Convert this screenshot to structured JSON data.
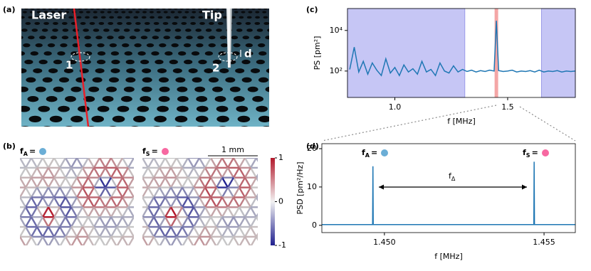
{
  "panels": {
    "a": {
      "label": "(a)",
      "laser": "Laser",
      "tip": "Tip",
      "point1": "1",
      "point2": "2",
      "distance": "d"
    },
    "b": {
      "label": "(b)",
      "mode_labels": [
        {
          "symbol": "f",
          "subscript": "A",
          "suffix": "=",
          "color": "#6baed6"
        },
        {
          "symbol": "f",
          "subscript": "S",
          "suffix": "=",
          "color": "#f768a1"
        }
      ],
      "scale_bar": "1 mm",
      "colorbar_ticks": [
        {
          "value": 1,
          "label": "1"
        },
        {
          "value": 0,
          "label": "0"
        },
        {
          "value": -1,
          "label": "-1"
        }
      ]
    }
  },
  "chart_data": [
    {
      "type": "line",
      "panel_label": "(c)",
      "x_label": "f [MHz]",
      "y_label": "PS [pm²]",
      "log_y": true,
      "xlim": [
        0.79,
        1.8
      ],
      "ylim": [
        5,
        120000
      ],
      "xticks": [
        {
          "value": 1,
          "label": "1.0"
        },
        1.5
      ],
      "yticks": [
        {
          "value": 100,
          "label": "10²"
        },
        {
          "value": 10000,
          "label": "10⁴"
        }
      ],
      "shaded_regions": [
        [
          0.79,
          1.31
        ],
        [
          1.65,
          1.8
        ]
      ],
      "shade_color": "#c6c6f5",
      "highlight_x": 1.45,
      "highlight_color": "#f4a6a6",
      "series": [
        {
          "color": "#1f77b4",
          "x": [
            0.8,
            0.82,
            0.84,
            0.86,
            0.88,
            0.9,
            0.92,
            0.94,
            0.96,
            0.98,
            1.0,
            1.02,
            1.04,
            1.06,
            1.08,
            1.1,
            1.12,
            1.14,
            1.16,
            1.18,
            1.2,
            1.22,
            1.24,
            1.26,
            1.28,
            1.3,
            1.32,
            1.34,
            1.36,
            1.38,
            1.4,
            1.42,
            1.44,
            1.45,
            1.46,
            1.48,
            1.5,
            1.52,
            1.54,
            1.56,
            1.58,
            1.6,
            1.62,
            1.64,
            1.66,
            1.68,
            1.7,
            1.72,
            1.74,
            1.76,
            1.78,
            1.8
          ],
          "values": [
            120,
            1500,
            90,
            300,
            70,
            250,
            110,
            60,
            400,
            80,
            150,
            60,
            200,
            90,
            130,
            70,
            300,
            90,
            120,
            60,
            250,
            100,
            80,
            180,
            90,
            120,
            95,
            110,
            90,
            105,
            95,
            110,
            100,
            30000,
            105,
            95,
            100,
            110,
            90,
            100,
            95,
            105,
            90,
            110,
            90,
            100,
            95,
            105,
            90,
            100,
            95,
            100
          ]
        }
      ]
    },
    {
      "type": "line",
      "panel_label": "(d)",
      "x_label": "f [MHz]",
      "y_label": "PSD [pm²/Hz]",
      "log_y": false,
      "xlim": [
        1.44804,
        1.45598
      ],
      "ylim": [
        -1.9,
        21.3
      ],
      "xticks": [
        {
          "value": 1.45,
          "label": "1.450"
        },
        1.455
      ],
      "yticks": [
        0,
        10,
        20
      ],
      "peak_labels": [
        {
          "symbol": "f",
          "subscript": "A",
          "suffix": "=",
          "color": "#6baed6"
        },
        {
          "symbol": "f",
          "subscript": "S",
          "suffix": "=",
          "color": "#f768a1"
        }
      ],
      "delta_label": {
        "symbol": "f",
        "subscript": "Δ"
      },
      "series": [
        {
          "color": "#1f77b4",
          "x": [
            1.44804,
            1.44963,
            1.44964,
            1.44965,
            1.45468,
            1.45469,
            1.4547,
            1.45598
          ],
          "values": [
            0.2,
            0.2,
            15.4,
            0.2,
            0.2,
            16.6,
            0.2,
            0.2
          ]
        }
      ]
    }
  ]
}
